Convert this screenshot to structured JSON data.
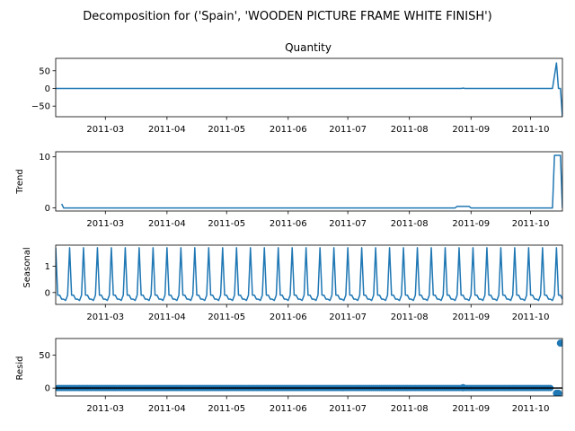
{
  "figure": {
    "title": "Decomposition for ('Spain', 'WOODEN PICTURE FRAME WHITE FINISH')"
  },
  "colors": {
    "series": "#1f77b4",
    "axes": "#000000",
    "background": "#ffffff"
  },
  "chart_data": [
    {
      "type": "line",
      "panel": "observed",
      "title": "Quantity",
      "ylabel": "",
      "x_range": [
        "2011-02-04",
        "2011-10-17"
      ],
      "x_ticks": [
        "2011-03",
        "2011-04",
        "2011-05",
        "2011-06",
        "2011-07",
        "2011-08",
        "2011-09",
        "2011-10"
      ],
      "ylim": [
        -80,
        85
      ],
      "y_ticks": [
        -50,
        0,
        50
      ],
      "y_tick_labels": [
        "−50",
        "0",
        "50"
      ],
      "series": [
        {
          "points": [
            [
              "2011-02-04",
              0
            ],
            [
              "2011-08-27",
              0
            ],
            [
              "2011-08-28",
              1
            ],
            [
              "2011-08-29",
              0
            ],
            [
              "2011-10-12",
              0
            ],
            [
              "2011-10-14",
              72
            ],
            [
              "2011-10-15",
              0
            ],
            [
              "2011-10-16",
              0
            ],
            [
              "2011-10-17",
              -80
            ]
          ]
        }
      ]
    },
    {
      "type": "line",
      "panel": "trend",
      "title": "",
      "ylabel": "Trend",
      "x_range": [
        "2011-02-04",
        "2011-10-17"
      ],
      "x_ticks": [
        "2011-03",
        "2011-04",
        "2011-05",
        "2011-06",
        "2011-07",
        "2011-08",
        "2011-09",
        "2011-10"
      ],
      "ylim": [
        -0.6,
        11.0
      ],
      "y_ticks": [
        0,
        10
      ],
      "y_tick_labels": [
        "0",
        "10"
      ],
      "series": [
        {
          "points": [
            [
              "2011-02-07",
              0.8
            ],
            [
              "2011-02-08",
              0
            ],
            [
              "2011-08-24",
              0
            ],
            [
              "2011-08-25",
              0.3
            ],
            [
              "2011-08-31",
              0.3
            ],
            [
              "2011-09-01",
              0
            ],
            [
              "2011-10-12",
              0
            ],
            [
              "2011-10-13",
              10.3
            ],
            [
              "2011-10-16",
              10.3
            ],
            [
              "2011-10-17",
              0
            ]
          ]
        }
      ]
    },
    {
      "type": "line",
      "panel": "seasonal",
      "title": "",
      "ylabel": "Seasonal",
      "x_range": [
        "2011-02-04",
        "2011-10-17"
      ],
      "x_ticks": [
        "2011-03",
        "2011-04",
        "2011-05",
        "2011-06",
        "2011-07",
        "2011-08",
        "2011-09",
        "2011-10"
      ],
      "ylim": [
        -0.45,
        1.8
      ],
      "y_ticks": [
        0,
        1
      ],
      "y_tick_labels": [
        "0",
        "1"
      ],
      "period_days": 7,
      "cycle_start": "2011-02-04",
      "weekly_pattern": [
        1.7,
        -0.1,
        -0.1,
        -0.25,
        -0.25,
        -0.3,
        -0.1
      ],
      "series": [
        {}
      ]
    },
    {
      "type": "scatter",
      "panel": "resid",
      "title": "",
      "ylabel": "Resid",
      "x_range": [
        "2011-02-04",
        "2011-10-17"
      ],
      "x_ticks": [
        "2011-03",
        "2011-04",
        "2011-05",
        "2011-06",
        "2011-07",
        "2011-08",
        "2011-09",
        "2011-10"
      ],
      "ylim": [
        -12,
        75
      ],
      "y_ticks": [
        0,
        50
      ],
      "y_tick_labels": [
        "0",
        "50"
      ],
      "baseline": 0,
      "series": [
        {
          "points_dense": {
            "start": "2011-02-05",
            "end": "2011-10-11",
            "value": 0
          },
          "points": [
            [
              "2011-08-28",
              0.5
            ],
            [
              "2011-10-14",
              -8
            ],
            [
              "2011-10-15",
              -8
            ],
            [
              "2011-10-16",
              68
            ]
          ]
        }
      ]
    }
  ]
}
